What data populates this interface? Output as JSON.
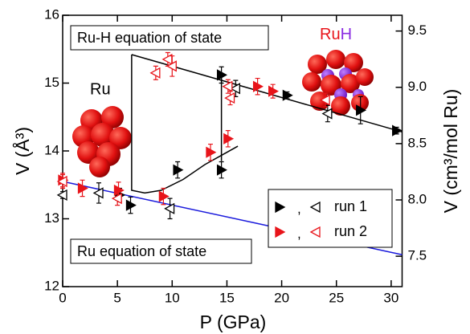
{
  "chart_data": {
    "type": "scatter",
    "xlabel": "P (GPa)",
    "ylabel": "V (Å³)",
    "y2label": "V (cm³/mol Ru)",
    "xlim": [
      0,
      31
    ],
    "xticks": [
      0,
      5,
      10,
      15,
      20,
      25,
      30
    ],
    "ylim": [
      12,
      16
    ],
    "yticks": [
      12,
      13,
      14,
      15,
      16
    ],
    "y2lim": [
      7.23,
      9.64
    ],
    "y2ticks": [
      7.5,
      {
        "value": 8,
        "label": "8.0"
      },
      8.5,
      {
        "value": 9,
        "label": "9.0"
      },
      9.5
    ],
    "legend_separator": ",",
    "series": [
      {
        "name": "run 1",
        "color": "#000000",
        "x": [
          5.2,
          6.2,
          10.5,
          14.5,
          14.5,
          20.5,
          27.2,
          30.5
        ],
        "values": [
          13.35,
          13.2,
          13.72,
          13.72,
          15.12,
          14.82,
          14.6,
          14.3
        ],
        "errors": [
          0.1,
          0.12,
          0.12,
          0.12,
          0.12,
          0.05,
          0.2,
          0.05
        ],
        "open_x": [
          0,
          3.3,
          9.8,
          15.8,
          24.2
        ],
        "open_values": [
          13.35,
          13.38,
          13.15,
          14.92,
          14.55
        ],
        "open_errors": [
          0.05,
          0.15,
          0.15,
          0.12,
          0.12
        ]
      },
      {
        "name": "run 2",
        "color": "#e8141a",
        "x": [
          0,
          1.8,
          5.1,
          9.2,
          13.5,
          15.1,
          17.8,
          19.2
        ],
        "values": [
          13.57,
          13.45,
          13.42,
          13.33,
          13.98,
          14.18,
          14.95,
          14.88
        ],
        "errors": [
          0.1,
          0.12,
          0.12,
          0.12,
          0.12,
          0.12,
          0.12,
          0.1
        ],
        "open_x": [
          0,
          5.0,
          8.5,
          9.6,
          10,
          15.1,
          15.3,
          24.0
        ],
        "open_values": [
          13.55,
          13.3,
          15.15,
          15.35,
          15.25,
          14.95,
          14.78,
          14.75
        ],
        "open_errors": [
          0.1,
          0.1,
          0.1,
          0.1,
          0.15,
          0.1,
          0.1,
          0.1
        ]
      }
    ],
    "fits": [
      {
        "color": "#000000",
        "x": [
          6.3,
          6.3,
          7.5,
          9,
          11,
          13,
          15,
          16
        ],
        "values": [
          15.42,
          13.42,
          13.38,
          13.42,
          13.58,
          13.8,
          13.98,
          14.07
        ]
      },
      {
        "color": "#000000",
        "x": [
          14.5,
          14.5
        ],
        "values": [
          13.85,
          15.12
        ]
      },
      {
        "color": "#000000",
        "x": [
          6.3,
          31
        ],
        "values": [
          15.42,
          14.28
        ]
      },
      {
        "color": "#1a1adc",
        "x": [
          0,
          31
        ],
        "values": [
          13.55,
          12.47
        ]
      }
    ],
    "annotations": [
      {
        "text": "Ru-H equation of state",
        "color": "#000000"
      },
      {
        "text": "Ru equation of state",
        "color": "#1a1adc"
      },
      {
        "text": "Ru",
        "color": "#e8141a"
      },
      {
        "parts": [
          {
            "text": "Ru",
            "color": "#e8141a"
          },
          {
            "text": "H",
            "color": "#8a2be2"
          }
        ]
      }
    ]
  }
}
